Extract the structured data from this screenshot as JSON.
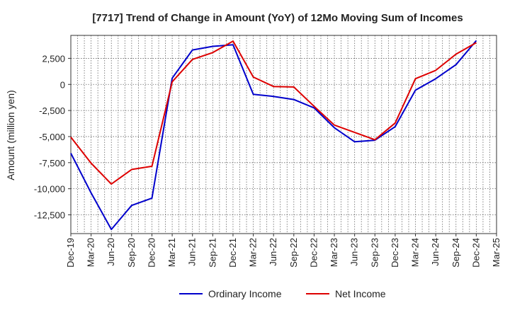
{
  "chart_data": {
    "type": "line",
    "title": "[7717]  Trend of Change in Amount (YoY) of 12Mo Moving Sum of Incomes",
    "xlabel": "",
    "ylabel": "Amount (million yen)",
    "categories": [
      "Dec-19",
      "Mar-20",
      "Jun-20",
      "Sep-20",
      "Dec-20",
      "Mar-21",
      "Jun-21",
      "Sep-21",
      "Dec-21",
      "Mar-22",
      "Jun-22",
      "Sep-22",
      "Dec-22",
      "Mar-23",
      "Jun-23",
      "Sep-23",
      "Dec-23",
      "Mar-24",
      "Jun-24",
      "Sep-24",
      "Dec-24",
      "Mar-25"
    ],
    "ylim": [
      -14300,
      4700
    ],
    "yticks": [
      2500,
      0,
      -2500,
      -5000,
      -7500,
      -10000,
      -12500
    ],
    "ytick_labels": [
      "2,500",
      "0",
      "-2,500",
      "-5,000",
      "-7,500",
      "-10,000",
      "-12,500"
    ],
    "grid": true,
    "legend_position": "bottom",
    "series": [
      {
        "name": "Ordinary Income",
        "color": "#0000cc",
        "values": [
          -6600,
          -10400,
          -13900,
          -11600,
          -10900,
          600,
          3300,
          3650,
          3800,
          -950,
          -1150,
          -1450,
          -2250,
          -4150,
          -5500,
          -5350,
          -4050,
          -550,
          550,
          1900,
          4200,
          null
        ]
      },
      {
        "name": "Net Income",
        "color": "#dd0000",
        "values": [
          -5050,
          -7550,
          -9550,
          -8150,
          -7850,
          250,
          2400,
          3050,
          4150,
          700,
          -200,
          -250,
          -2100,
          -3900,
          -4600,
          -5300,
          -3700,
          550,
          1350,
          2900,
          4000,
          null
        ]
      }
    ]
  }
}
